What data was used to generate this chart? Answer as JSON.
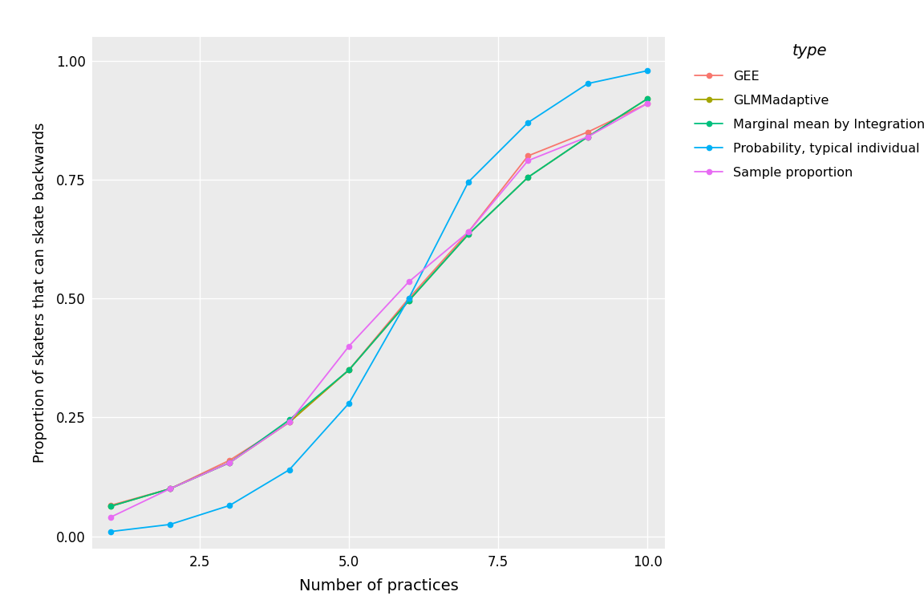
{
  "x": [
    1,
    2,
    3,
    4,
    5,
    6,
    7,
    8,
    9,
    10
  ],
  "GEE": [
    0.065,
    0.1,
    0.16,
    0.24,
    0.35,
    0.5,
    0.64,
    0.8,
    0.85,
    0.91
  ],
  "GLMMadaptive": [
    0.063,
    0.1,
    0.155,
    0.24,
    0.35,
    0.495,
    0.635,
    0.755,
    0.84,
    0.92
  ],
  "Marginal_mean": [
    0.063,
    0.1,
    0.155,
    0.245,
    0.35,
    0.495,
    0.635,
    0.755,
    0.84,
    0.92
  ],
  "Typical_individual": [
    0.01,
    0.025,
    0.065,
    0.14,
    0.28,
    0.5,
    0.745,
    0.87,
    0.952,
    0.979
  ],
  "Sample_proportion": [
    0.04,
    0.1,
    0.155,
    0.24,
    0.4,
    0.535,
    0.64,
    0.79,
    0.84,
    0.91
  ],
  "colors": {
    "GEE": "#F8766D",
    "GLMMadaptive": "#A3A500",
    "Marginal_mean": "#00BF7D",
    "Typical_individual": "#00B0F6",
    "Sample_proportion": "#E76BF3"
  },
  "legend_labels": {
    "GEE": "GEE",
    "GLMMadaptive": "GLMMadaptive",
    "Marginal_mean": "Marginal mean by Integration",
    "Typical_individual": "Probability, typical individual",
    "Sample_proportion": "Sample proportion"
  },
  "xlabel": "Number of practices",
  "ylabel": "Proportion of skaters that can skate backwards",
  "legend_title": "type",
  "xlim": [
    0.7,
    10.3
  ],
  "ylim": [
    -0.025,
    1.05
  ],
  "xticks": [
    2.5,
    5.0,
    7.5,
    10.0
  ],
  "yticks": [
    0.0,
    0.25,
    0.5,
    0.75,
    1.0
  ],
  "panel_background": "#EBEBEB",
  "fig_background": "#FFFFFF",
  "grid_color": "#FFFFFF",
  "marker_size": 4.5,
  "linewidth": 1.3
}
